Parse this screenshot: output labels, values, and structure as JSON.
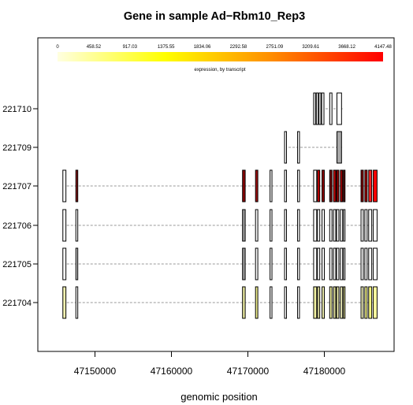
{
  "chart_data": {
    "type": "gene-expression-track",
    "title": "Gene in sample Ad−Rbm10_Rep3",
    "xlabel": "genomic position",
    "ylabel": "",
    "xlim": [
      47144000,
      47187500
    ],
    "x_ticks": [
      47150000,
      47160000,
      47170000,
      47180000
    ],
    "x_tick_labels": [
      "47150000",
      "47160000",
      "47170000",
      "47180000"
    ],
    "grid": false,
    "colorbar": {
      "label": "expression, by transcript",
      "min": 0,
      "max": 4147.48,
      "tick_labels": [
        "0",
        "458.52",
        "917.03",
        "1375.55",
        "1834.06",
        "2292.58",
        "2751.09",
        "3209.61",
        "3668.12",
        "4147.48"
      ],
      "colors": [
        "#ffffe0",
        "#ffff00",
        "#ff8c00",
        "#ff0000"
      ]
    },
    "transcripts": [
      {
        "name": "221704",
        "range": [
          47145800,
          47187000
        ],
        "exons": [
          {
            "start": 47145800,
            "end": 47146200,
            "color": "#f0f0b0"
          },
          {
            "start": 47147500,
            "end": 47147750,
            "color": "#ffffff"
          },
          {
            "start": 47169300,
            "end": 47169650,
            "color": "#e8e8a0"
          },
          {
            "start": 47171000,
            "end": 47171300,
            "color": "#f0f090"
          },
          {
            "start": 47172900,
            "end": 47173150,
            "color": "#ffffff"
          },
          {
            "start": 47174800,
            "end": 47175050,
            "color": "#ffffff"
          },
          {
            "start": 47176500,
            "end": 47176750,
            "color": "#ffffff"
          },
          {
            "start": 47178600,
            "end": 47179000,
            "color": "#f0f0a0"
          },
          {
            "start": 47179100,
            "end": 47179400,
            "color": "#e0e0a0"
          },
          {
            "start": 47179700,
            "end": 47180000,
            "color": "#f0f0b0"
          },
          {
            "start": 47180700,
            "end": 47181000,
            "color": "#f0f0a0"
          },
          {
            "start": 47181200,
            "end": 47181500,
            "color": "#e8e8a0"
          },
          {
            "start": 47181600,
            "end": 47181900,
            "color": "#f0f0b0"
          },
          {
            "start": 47182100,
            "end": 47182400,
            "color": "#f8f8c0"
          },
          {
            "start": 47182500,
            "end": 47182700,
            "color": "#f0f0a0"
          },
          {
            "start": 47184800,
            "end": 47185100,
            "color": "#f8f8c0"
          },
          {
            "start": 47185300,
            "end": 47185600,
            "color": "#ffff90"
          },
          {
            "start": 47185800,
            "end": 47186200,
            "color": "#ffff80"
          },
          {
            "start": 47186400,
            "end": 47186900,
            "color": "#ffffa0"
          }
        ]
      },
      {
        "name": "221705",
        "range": [
          47145800,
          47187000
        ],
        "exons": [
          {
            "start": 47145800,
            "end": 47146200,
            "color": "#ffffff"
          },
          {
            "start": 47147500,
            "end": 47147750,
            "color": "#c8c8c8"
          },
          {
            "start": 47169300,
            "end": 47169650,
            "color": "#9a9a9a"
          },
          {
            "start": 47171000,
            "end": 47171300,
            "color": "#ffffff"
          },
          {
            "start": 47172900,
            "end": 47173150,
            "color": "#ffffff"
          },
          {
            "start": 47174800,
            "end": 47175050,
            "color": "#ffffff"
          },
          {
            "start": 47176500,
            "end": 47176750,
            "color": "#ffffff"
          },
          {
            "start": 47178600,
            "end": 47179000,
            "color": "#ffffff"
          },
          {
            "start": 47179100,
            "end": 47179400,
            "color": "#ffffff"
          },
          {
            "start": 47179700,
            "end": 47180000,
            "color": "#ffffff"
          },
          {
            "start": 47180700,
            "end": 47181000,
            "color": "#ffffff"
          },
          {
            "start": 47181200,
            "end": 47181500,
            "color": "#ffffff"
          },
          {
            "start": 47181600,
            "end": 47181900,
            "color": "#ffffff"
          },
          {
            "start": 47182100,
            "end": 47182400,
            "color": "#ffffff"
          },
          {
            "start": 47182500,
            "end": 47182700,
            "color": "#ffffff"
          },
          {
            "start": 47184800,
            "end": 47185100,
            "color": "#ffffff"
          },
          {
            "start": 47185300,
            "end": 47185600,
            "color": "#ffffff"
          },
          {
            "start": 47185800,
            "end": 47186200,
            "color": "#ffffff"
          },
          {
            "start": 47186400,
            "end": 47186900,
            "color": "#ffffff"
          }
        ]
      },
      {
        "name": "221706",
        "range": [
          47145800,
          47187000
        ],
        "exons": [
          {
            "start": 47145800,
            "end": 47146200,
            "color": "#ffffff"
          },
          {
            "start": 47147500,
            "end": 47147750,
            "color": "#ffffff"
          },
          {
            "start": 47169300,
            "end": 47169650,
            "color": "#9a9a9a"
          },
          {
            "start": 47171000,
            "end": 47171300,
            "color": "#ffffff"
          },
          {
            "start": 47172900,
            "end": 47173150,
            "color": "#ffffff"
          },
          {
            "start": 47174800,
            "end": 47175050,
            "color": "#ffffff"
          },
          {
            "start": 47176500,
            "end": 47176750,
            "color": "#ffffff"
          },
          {
            "start": 47178600,
            "end": 47179000,
            "color": "#ffffff"
          },
          {
            "start": 47179100,
            "end": 47179400,
            "color": "#ffffff"
          },
          {
            "start": 47179700,
            "end": 47180000,
            "color": "#ffffff"
          },
          {
            "start": 47180700,
            "end": 47181000,
            "color": "#ffffff"
          },
          {
            "start": 47181200,
            "end": 47181500,
            "color": "#ffffff"
          },
          {
            "start": 47181600,
            "end": 47181900,
            "color": "#ffffff"
          },
          {
            "start": 47182100,
            "end": 47182400,
            "color": "#ffffff"
          },
          {
            "start": 47182500,
            "end": 47182700,
            "color": "#ffffff"
          },
          {
            "start": 47184800,
            "end": 47185100,
            "color": "#ffffff"
          },
          {
            "start": 47185300,
            "end": 47185600,
            "color": "#ffffff"
          },
          {
            "start": 47185800,
            "end": 47186200,
            "color": "#ffffff"
          },
          {
            "start": 47186400,
            "end": 47186900,
            "color": "#ffffff"
          }
        ]
      },
      {
        "name": "221707",
        "range": [
          47145800,
          47187000
        ],
        "exons": [
          {
            "start": 47145800,
            "end": 47146200,
            "color": "#ffffff"
          },
          {
            "start": 47147500,
            "end": 47147750,
            "color": "#8b1a1a"
          },
          {
            "start": 47169300,
            "end": 47169650,
            "color": "#8b0000"
          },
          {
            "start": 47171000,
            "end": 47171300,
            "color": "#a01010"
          },
          {
            "start": 47172900,
            "end": 47173150,
            "color": "#ffffff"
          },
          {
            "start": 47174800,
            "end": 47175050,
            "color": "#ffffff"
          },
          {
            "start": 47176500,
            "end": 47176750,
            "color": "#ffffff"
          },
          {
            "start": 47178600,
            "end": 47179000,
            "color": "#ffffff"
          },
          {
            "start": 47179100,
            "end": 47179400,
            "color": "#cc0000"
          },
          {
            "start": 47179700,
            "end": 47180000,
            "color": "#8b0000"
          },
          {
            "start": 47180700,
            "end": 47181000,
            "color": "#700000"
          },
          {
            "start": 47181200,
            "end": 47181500,
            "color": "#cc0000"
          },
          {
            "start": 47181600,
            "end": 47181900,
            "color": "#900000"
          },
          {
            "start": 47182100,
            "end": 47182400,
            "color": "#a00000"
          },
          {
            "start": 47182500,
            "end": 47182700,
            "color": "#600000"
          },
          {
            "start": 47184800,
            "end": 47185100,
            "color": "#800000"
          },
          {
            "start": 47185300,
            "end": 47185600,
            "color": "#a00000"
          },
          {
            "start": 47185800,
            "end": 47186200,
            "color": "#ff2020"
          },
          {
            "start": 47186400,
            "end": 47186900,
            "color": "#ff0000"
          }
        ]
      },
      {
        "name": "221709",
        "range": [
          47174800,
          47182400
        ],
        "exons": [
          {
            "start": 47174800,
            "end": 47175050,
            "color": "#ffffff"
          },
          {
            "start": 47176500,
            "end": 47176750,
            "color": "#ffffff"
          },
          {
            "start": 47181650,
            "end": 47182250,
            "color": "#a8a8a8"
          }
        ]
      },
      {
        "name": "221710",
        "range": [
          47178600,
          47182400
        ],
        "exons": [
          {
            "start": 47178600,
            "end": 47178850,
            "color": "#ffffff"
          },
          {
            "start": 47178950,
            "end": 47179200,
            "color": "#ffffff"
          },
          {
            "start": 47179300,
            "end": 47179550,
            "color": "#ffffff"
          },
          {
            "start": 47179650,
            "end": 47179950,
            "color": "#ffffff"
          },
          {
            "start": 47180700,
            "end": 47181000,
            "color": "#ffffff"
          },
          {
            "start": 47181650,
            "end": 47182250,
            "color": "#ffffff"
          }
        ]
      }
    ]
  }
}
